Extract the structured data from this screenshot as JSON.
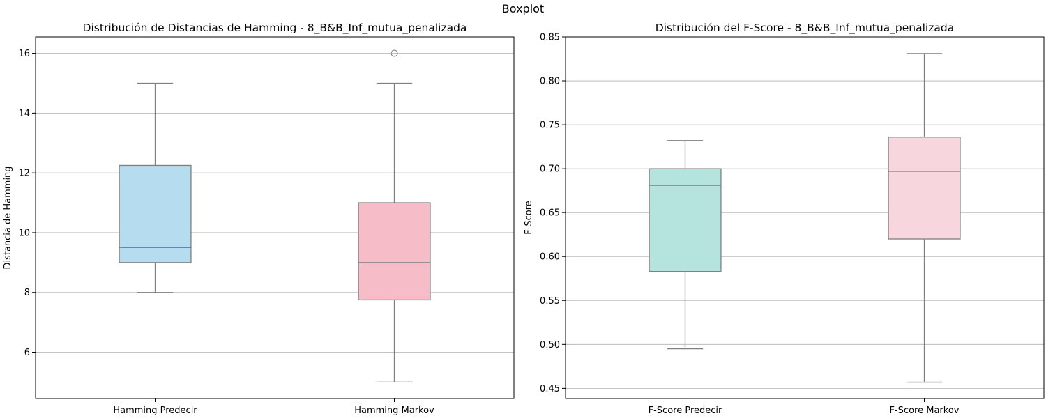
{
  "figure": {
    "suptitle": "Boxplot"
  },
  "chart_data": [
    {
      "type": "box",
      "title": "Distribución de Distancias de Hamming - 8_B&B_Inf_mutua_penalizada",
      "xlabel": "",
      "ylabel": "Distancia de Hamming",
      "ylim": [
        4.45,
        16.55
      ],
      "yticks": [
        6,
        8,
        10,
        12,
        14,
        16
      ],
      "ytick_labels": [
        "6",
        "8",
        "10",
        "12",
        "14",
        "16"
      ],
      "grid": "y",
      "categories": [
        "Hamming Predecir",
        "Hamming Markov"
      ],
      "boxes": [
        {
          "label": "Hamming Predecir",
          "whislo": 8,
          "q1": 9,
          "med": 9.5,
          "q3": 12.25,
          "whishi": 15,
          "fliers": [],
          "color": "#b6ddef"
        },
        {
          "label": "Hamming Markov",
          "whislo": 5,
          "q1": 7.75,
          "med": 9,
          "q3": 11,
          "whishi": 15,
          "fliers": [
            16
          ],
          "color": "#f6bcc8"
        }
      ]
    },
    {
      "type": "box",
      "title": "Distribución del F-Score - 8_B&B_Inf_mutua_penalizada",
      "xlabel": "",
      "ylabel": "F-Score",
      "ylim": [
        0.4384,
        0.85
      ],
      "yticks": [
        0.45,
        0.5,
        0.55,
        0.6,
        0.65,
        0.7,
        0.75,
        0.8,
        0.85
      ],
      "ytick_labels": [
        "0.45",
        "0.50",
        "0.55",
        "0.60",
        "0.65",
        "0.70",
        "0.75",
        "0.80",
        "0.85"
      ],
      "grid": "y",
      "categories": [
        "F-Score Predecir",
        "F-Score Markov"
      ],
      "boxes": [
        {
          "label": "F-Score Predecir",
          "whislo": 0.495,
          "q1": 0.583,
          "med": 0.681,
          "q3": 0.7,
          "whishi": 0.732,
          "fliers": [],
          "color": "#b5e4df"
        },
        {
          "label": "F-Score Markov",
          "whislo": 0.457,
          "q1": 0.62,
          "med": 0.697,
          "q3": 0.736,
          "whishi": 0.831,
          "fliers": [],
          "color": "#f8d6de"
        }
      ]
    }
  ],
  "style": {
    "line_color": "#7f7f7f",
    "grid_color": "#b0b0b0",
    "axis_color": "#000000"
  }
}
